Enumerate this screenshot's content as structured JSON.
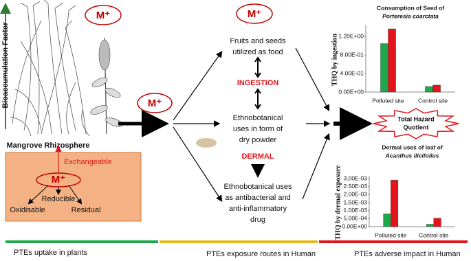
{
  "left": {
    "axis_label": "Bioaccumulation Factor",
    "ion_top": "M⁺",
    "caption": "Mangrove Rhizosphere",
    "box": {
      "exchangeable": "Exchangeable",
      "ion": "M⁺",
      "reducible": "Reducible",
      "oxidisable": "Oxidisable",
      "residual": "Residual"
    }
  },
  "middle": {
    "ion_transfer": "M⁺",
    "ion_top": "M⁺",
    "food": [
      "Fruits and seeds",
      "utilized as food"
    ],
    "ingestion": "INGESTION",
    "powder": [
      "Ethnobotanical",
      "uses in form of",
      "dry powder"
    ],
    "dermal": "DERMAL",
    "drug": [
      "Ethnobotanical uses",
      "as antibacterial and",
      "anti-inflammatory",
      "drug"
    ]
  },
  "outcome": [
    "Total Hazard",
    "Quotient"
  ],
  "charts": [
    {
      "type": "bar",
      "title": "Consumption of Seed of",
      "species": "Porteresia coarctata",
      "y_label": "THQ by ingestion",
      "categories": [
        "Polluted site",
        "Control site"
      ],
      "series": [
        {
          "color": "#1fa84a",
          "values": [
            1.05,
            0.12
          ]
        },
        {
          "color": "#e3141b",
          "values": [
            1.37,
            0.15
          ]
        }
      ],
      "ylim": [
        0,
        1.4
      ],
      "yticks": [
        {
          "value": 0,
          "label": "0.00E+00"
        },
        {
          "value": 0.4,
          "label": "4.00E-01"
        },
        {
          "value": 0.8,
          "label": "8.00E-01"
        },
        {
          "value": 1.2,
          "label": "1.20E+00"
        }
      ]
    },
    {
      "type": "bar",
      "title": "Dermal uses of leaf of",
      "species": "Acanthus ilicifolius",
      "y_label": "THQ by dermal exposure",
      "categories": [
        "Polluted site",
        "Control site"
      ],
      "series": [
        {
          "color": "#1fa84a",
          "values": [
            0.0008,
            0.00015
          ]
        },
        {
          "color": "#e3141b",
          "values": [
            0.0029,
            0.00053
          ]
        }
      ],
      "ylim": [
        0,
        0.003
      ],
      "yticks": [
        {
          "value": 0,
          "label": "0.00E+00"
        },
        {
          "value": 0.0005,
          "label": "5.00E-04"
        },
        {
          "value": 0.001,
          "label": "1.00E-03"
        },
        {
          "value": 0.0015,
          "label": "1.50E-03"
        },
        {
          "value": 0.002,
          "label": "2.00E-03"
        },
        {
          "value": 0.0025,
          "label": "2.50E-03"
        },
        {
          "value": 0.003,
          "label": "3.00E-03"
        }
      ]
    }
  ],
  "stages": [
    "PTEs uptake in plants",
    "PTEs exposure routes in Human",
    "PTEs adverse impact in Human"
  ]
}
